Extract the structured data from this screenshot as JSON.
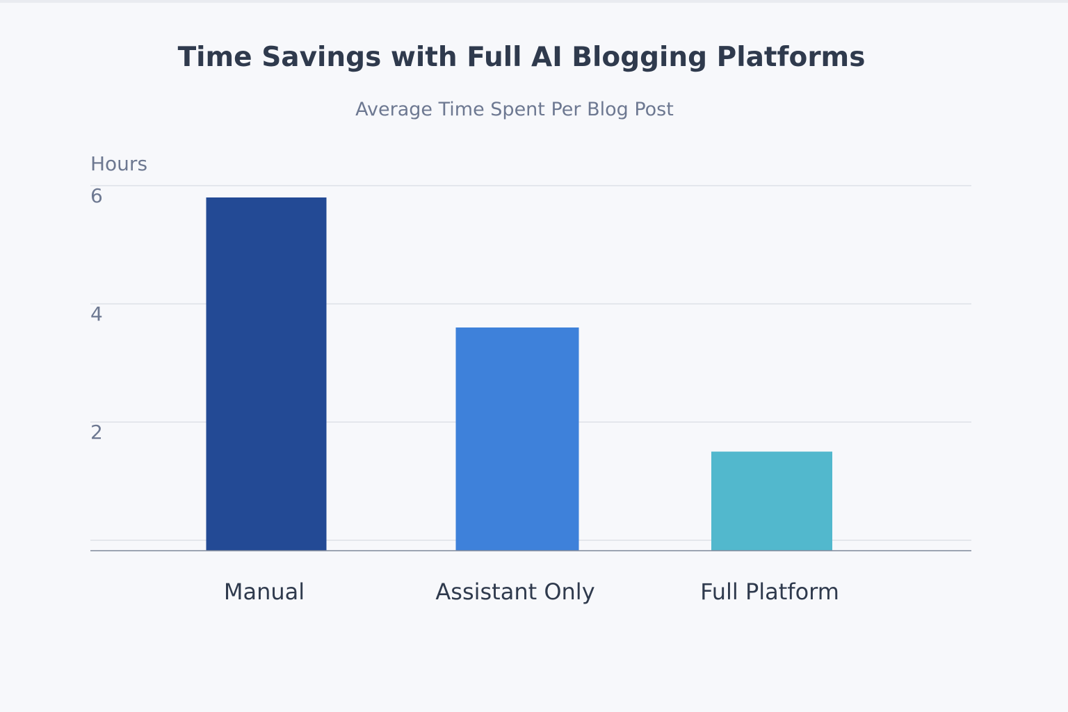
{
  "chart_data": {
    "type": "bar",
    "title": "Time Savings with Full AI Blogging Platforms",
    "subtitle": "Average Time Spent Per Blog Post",
    "ylabel": "Hours",
    "xlabel": "",
    "categories": [
      "Manual",
      "Assistant Only",
      "Full Platform"
    ],
    "values": [
      5.8,
      3.6,
      1.5
    ],
    "colors": [
      "#234a95",
      "#3e81da",
      "#52b8cd"
    ],
    "ylim": [
      0,
      6
    ],
    "yticks": [
      2,
      4,
      6
    ],
    "grid": true,
    "legend": "none"
  }
}
